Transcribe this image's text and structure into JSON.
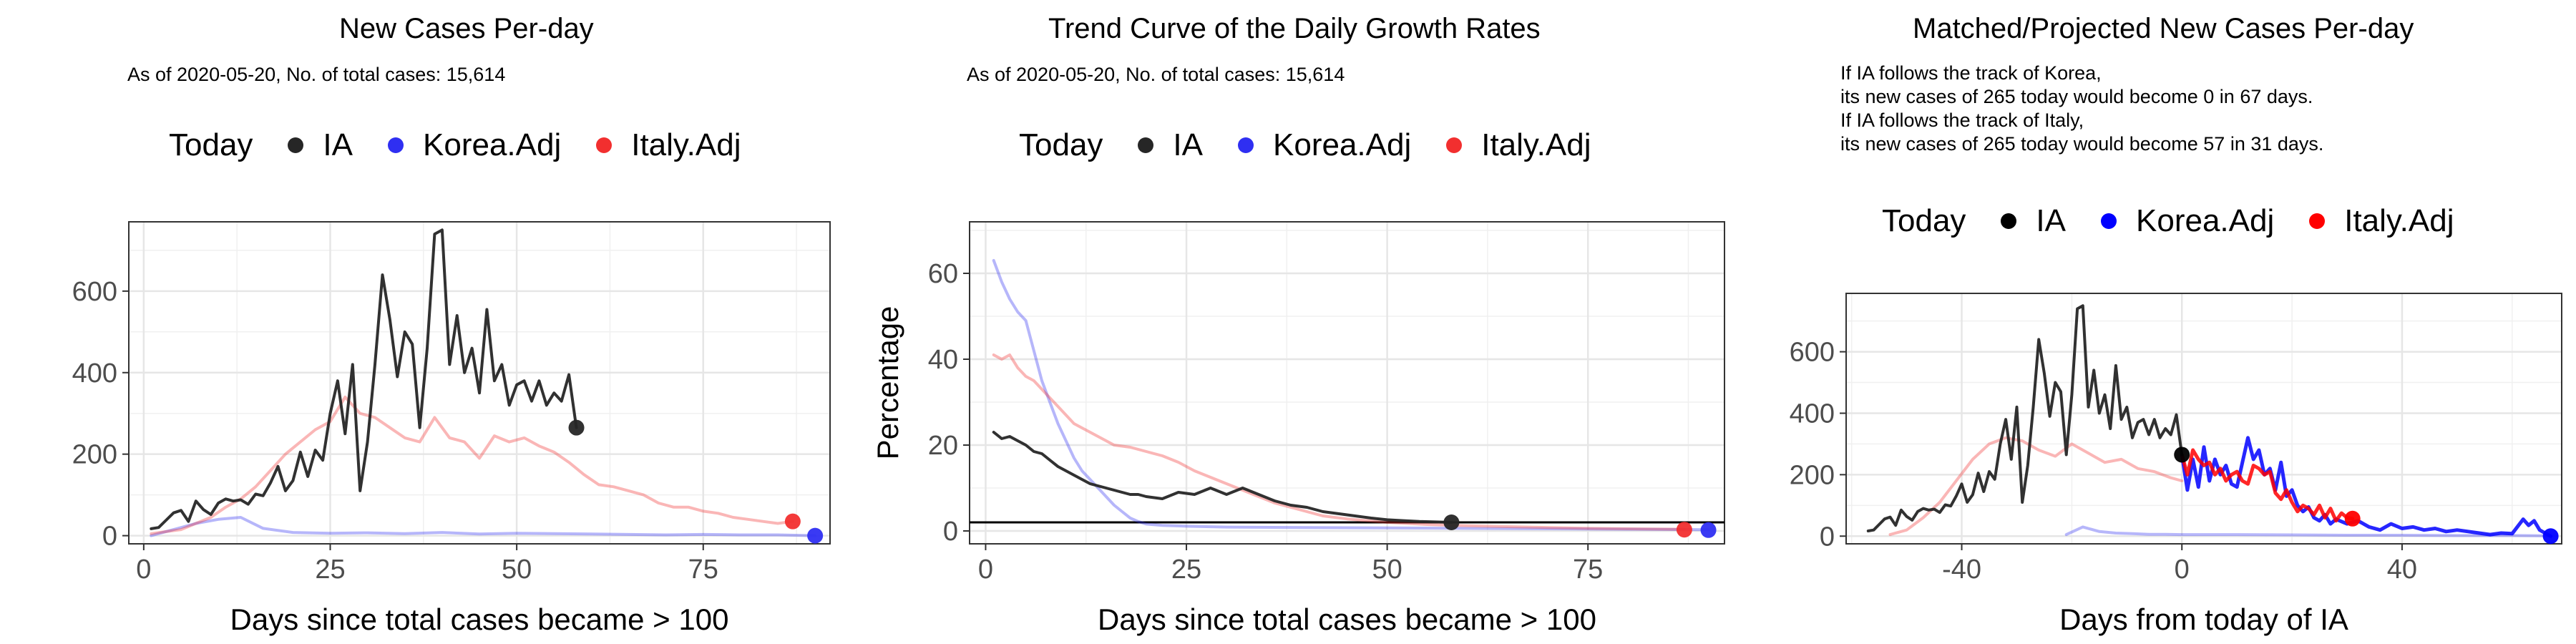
{
  "panels": [
    {
      "title": "New Cases Per-day",
      "subtitle_lines": [
        "As of 2020-05-20, No. of total cases: 15,614"
      ],
      "legend": {
        "title": "Today",
        "items": [
          {
            "label": "IA",
            "color": "#262626"
          },
          {
            "label": "Korea.Adj",
            "color": "#2F2FF2"
          },
          {
            "label": "Italy.Adj",
            "color": "#F22F2F"
          }
        ]
      }
    },
    {
      "title": "Trend Curve of the Daily Growth Rates",
      "subtitle_lines": [
        "As of 2020-05-20, No. of total cases: 15,614"
      ],
      "legend": {
        "title": "Today",
        "items": [
          {
            "label": "IA",
            "color": "#262626"
          },
          {
            "label": "Korea.Adj",
            "color": "#2F2FF2"
          },
          {
            "label": "Italy.Adj",
            "color": "#F22F2F"
          }
        ]
      }
    },
    {
      "title": "Matched/Projected New Cases Per-day",
      "subtitle_lines": [
        "If IA follows the track of Korea,",
        "its new cases of 265 today would become 0 in 67 days.",
        "If IA follows the track of Italy,",
        "its new cases of 265 today would become 57 in 31 days."
      ],
      "legend": {
        "title": "Today",
        "items": [
          {
            "label": "IA",
            "color": "#000000"
          },
          {
            "label": "Korea.Adj",
            "color": "#0000FF"
          },
          {
            "label": "Italy.Adj",
            "color": "#FF0000"
          }
        ]
      }
    }
  ],
  "chart_data": [
    {
      "type": "line",
      "title": "New Cases Per-day",
      "xlabel": "Days since total cases became > 100",
      "ylabel": "",
      "xlim": [
        -2,
        92
      ],
      "ylim": [
        -20,
        770
      ],
      "xticks": [
        0,
        25,
        50,
        75
      ],
      "yticks": [
        0,
        200,
        400,
        600
      ],
      "grid": true,
      "legend_position": "top",
      "series": [
        {
          "name": "IA",
          "color": "#262626",
          "opacity": 0.95,
          "width": 4,
          "x": [
            1,
            2,
            3,
            4,
            5,
            6,
            7,
            8,
            9,
            10,
            11,
            12,
            13,
            14,
            15,
            16,
            17,
            18,
            19,
            20,
            21,
            22,
            23,
            24,
            25,
            26,
            27,
            28,
            29,
            30,
            31,
            32,
            33,
            34,
            35,
            36,
            37,
            38,
            39,
            40,
            41,
            42,
            43,
            44,
            45,
            46,
            47,
            48,
            49,
            50,
            51,
            52,
            53,
            54,
            55,
            56,
            57,
            58
          ],
          "y": [
            17,
            20,
            38,
            56,
            62,
            35,
            85,
            64,
            52,
            80,
            90,
            85,
            88,
            77,
            102,
            98,
            130,
            170,
            110,
            135,
            205,
            145,
            210,
            185,
            300,
            380,
            250,
            420,
            110,
            230,
            420,
            640,
            530,
            390,
            500,
            470,
            265,
            460,
            740,
            750,
            420,
            540,
            400,
            460,
            350,
            555,
            380,
            420,
            320,
            370,
            380,
            330,
            380,
            320,
            350,
            330,
            395,
            265
          ]
        },
        {
          "name": "Korea.Adj",
          "color": "#2F2FF2",
          "opacity": 0.35,
          "width": 4,
          "x": [
            1,
            4,
            7,
            10,
            13,
            16,
            20,
            25,
            30,
            35,
            40,
            45,
            50,
            55,
            60,
            65,
            70,
            75,
            80,
            85,
            90
          ],
          "y": [
            0,
            15,
            30,
            40,
            45,
            18,
            8,
            6,
            7,
            5,
            8,
            4,
            6,
            5,
            4,
            3,
            2,
            3,
            2,
            2,
            0
          ]
        },
        {
          "name": "Italy.Adj",
          "color": "#F22F2F",
          "opacity": 0.35,
          "width": 4,
          "x": [
            1,
            3,
            5,
            7,
            9,
            11,
            13,
            15,
            17,
            19,
            21,
            23,
            25,
            27,
            29,
            31,
            33,
            35,
            37,
            39,
            41,
            43,
            45,
            47,
            49,
            51,
            53,
            55,
            57,
            59,
            61,
            63,
            65,
            67,
            69,
            71,
            73,
            75,
            77,
            79,
            81,
            83,
            85,
            87
          ],
          "y": [
            5,
            10,
            15,
            30,
            45,
            70,
            90,
            120,
            160,
            200,
            230,
            260,
            280,
            340,
            300,
            290,
            265,
            240,
            230,
            290,
            240,
            230,
            190,
            245,
            230,
            240,
            220,
            205,
            180,
            150,
            125,
            120,
            110,
            100,
            80,
            70,
            70,
            60,
            55,
            45,
            40,
            35,
            30,
            35
          ]
        }
      ],
      "today_points": [
        {
          "series": "IA",
          "x": 58,
          "y": 265,
          "color": "#262626"
        },
        {
          "series": "Korea.Adj",
          "x": 90,
          "y": 0,
          "color": "#2F2FF2"
        },
        {
          "series": "Italy.Adj",
          "x": 87,
          "y": 35,
          "color": "#F22F2F"
        }
      ]
    },
    {
      "type": "line",
      "title": "Trend Curve of the Daily Growth Rates",
      "xlabel": "Days since total cases became > 100",
      "ylabel": "Percentage",
      "xlim": [
        -2,
        92
      ],
      "ylim": [
        -3,
        72
      ],
      "xticks": [
        0,
        25,
        50,
        75
      ],
      "yticks": [
        0,
        20,
        40,
        60
      ],
      "grid": true,
      "legend_position": "top",
      "hline": 2,
      "series": [
        {
          "name": "IA",
          "color": "#262626",
          "opacity": 0.95,
          "width": 4,
          "x": [
            1,
            2,
            3,
            4,
            5,
            6,
            7,
            8,
            9,
            10,
            11,
            12,
            13,
            14,
            15,
            16,
            17,
            18,
            19,
            20,
            22,
            24,
            26,
            28,
            30,
            32,
            34,
            36,
            38,
            40,
            42,
            44,
            46,
            48,
            50,
            52,
            54,
            56,
            58
          ],
          "y": [
            23,
            21.5,
            22,
            21,
            20,
            18.5,
            18,
            16.5,
            15,
            14,
            13,
            12,
            11,
            10.5,
            10,
            9.5,
            9,
            8.5,
            8.5,
            8,
            7.5,
            9,
            8.5,
            10,
            8.5,
            10,
            8.5,
            7,
            6,
            5.5,
            4.5,
            4,
            3.5,
            3,
            2.6,
            2.4,
            2.2,
            2.1,
            2
          ]
        },
        {
          "name": "Korea.Adj",
          "color": "#2F2FF2",
          "opacity": 0.35,
          "width": 4,
          "x": [
            1,
            2,
            3,
            4,
            5,
            6,
            7,
            8,
            9,
            10,
            11,
            12,
            13,
            14,
            15,
            16,
            17,
            18,
            19,
            20,
            22,
            25,
            30,
            40,
            50,
            60,
            70,
            80,
            90
          ],
          "y": [
            63,
            58,
            54,
            51,
            49,
            42,
            35,
            30,
            25,
            21,
            17,
            14,
            12,
            10,
            8,
            6,
            4.5,
            3,
            2.2,
            1.6,
            1.3,
            1.1,
            0.9,
            0.8,
            0.7,
            0.6,
            0.5,
            0.4,
            0.3
          ]
        },
        {
          "name": "Italy.Adj",
          "color": "#F22F2F",
          "opacity": 0.35,
          "width": 4,
          "x": [
            1,
            2,
            3,
            4,
            5,
            6,
            7,
            8,
            9,
            10,
            11,
            12,
            13,
            14,
            15,
            16,
            18,
            20,
            22,
            24,
            26,
            28,
            30,
            32,
            34,
            36,
            38,
            40,
            42,
            45,
            50,
            55,
            60,
            65,
            70,
            75,
            80,
            87
          ],
          "y": [
            41,
            40,
            41,
            38,
            36,
            35,
            33,
            31,
            29,
            27,
            25,
            24,
            23,
            22,
            21,
            20,
            19.5,
            18.5,
            17.5,
            16,
            14,
            12.5,
            11,
            9.5,
            8,
            6.5,
            5.5,
            4.5,
            3.5,
            2.8,
            2,
            1.5,
            1.2,
            1,
            0.8,
            0.6,
            0.5,
            0.4
          ]
        }
      ],
      "today_points": [
        {
          "series": "IA",
          "x": 58,
          "y": 2,
          "color": "#262626"
        },
        {
          "series": "Korea.Adj",
          "x": 90,
          "y": 0.2,
          "color": "#2F2FF2"
        },
        {
          "series": "Italy.Adj",
          "x": 87,
          "y": 0.3,
          "color": "#F22F2F"
        }
      ]
    },
    {
      "type": "line",
      "title": "Matched/Projected New Cases Per-day",
      "xlabel": "Days from today of IA",
      "ylabel": "",
      "xlim": [
        -61,
        69
      ],
      "ylim": [
        -25,
        790
      ],
      "xticks": [
        -40,
        0,
        40
      ],
      "yticks": [
        0,
        200,
        400,
        600
      ],
      "grid": true,
      "legend_position": "top",
      "series": [
        {
          "name": "IA",
          "color": "#262626",
          "opacity": 0.95,
          "width": 4,
          "x": [
            -57,
            -56,
            -55,
            -54,
            -53,
            -52,
            -51,
            -50,
            -49,
            -48,
            -47,
            -46,
            -45,
            -44,
            -43,
            -42,
            -41,
            -40,
            -39,
            -38,
            -37,
            -36,
            -35,
            -34,
            -33,
            -32,
            -31,
            -30,
            -29,
            -28,
            -27,
            -26,
            -25,
            -24,
            -23,
            -22,
            -21,
            -20,
            -19,
            -18,
            -17,
            -16,
            -15,
            -14,
            -13,
            -12,
            -11,
            -10,
            -9,
            -8,
            -7,
            -6,
            -5,
            -4,
            -3,
            -2,
            -1,
            0
          ],
          "y": [
            17,
            20,
            38,
            56,
            62,
            35,
            85,
            64,
            52,
            80,
            90,
            85,
            88,
            77,
            102,
            98,
            130,
            170,
            110,
            135,
            205,
            145,
            210,
            185,
            300,
            380,
            250,
            420,
            110,
            230,
            420,
            640,
            530,
            390,
            500,
            470,
            265,
            460,
            740,
            750,
            420,
            540,
            400,
            460,
            350,
            555,
            380,
            420,
            320,
            370,
            380,
            330,
            380,
            320,
            350,
            330,
            395,
            265
          ]
        },
        {
          "name": "Italy.Adj (matched)",
          "color": "#F22F2F",
          "opacity": 0.35,
          "width": 4,
          "x": [
            -53,
            -50,
            -47,
            -44,
            -41,
            -38,
            -35,
            -32,
            -29,
            -26,
            -23,
            -20,
            -17,
            -14,
            -11,
            -8,
            -5,
            -2,
            0
          ],
          "y": [
            5,
            20,
            60,
            110,
            180,
            250,
            300,
            320,
            310,
            280,
            260,
            300,
            270,
            240,
            250,
            220,
            210,
            190,
            180
          ]
        },
        {
          "name": "Korea.Adj (matched)",
          "color": "#2F2FF2",
          "opacity": 0.35,
          "width": 4,
          "x": [
            -21,
            -18,
            -15,
            -12,
            -9,
            -6,
            -3,
            0,
            10,
            20,
            30,
            40,
            50,
            60,
            67
          ],
          "y": [
            5,
            30,
            15,
            10,
            8,
            6,
            6,
            5,
            5,
            4,
            3,
            3,
            2,
            2,
            1
          ]
        },
        {
          "name": "Korea.Adj",
          "color": "#0000FF",
          "opacity": 0.85,
          "width": 5,
          "x": [
            0,
            1,
            2,
            3,
            4,
            5,
            6,
            7,
            8,
            9,
            10,
            11,
            12,
            13,
            14,
            15,
            16,
            17,
            18,
            19,
            20,
            21,
            22,
            23,
            24,
            25,
            26,
            27,
            28,
            30,
            32,
            34,
            36,
            38,
            40,
            42,
            44,
            46,
            48,
            50,
            52,
            54,
            56,
            58,
            60,
            62,
            63,
            64,
            65,
            66,
            67
          ],
          "y": [
            265,
            150,
            250,
            160,
            290,
            180,
            250,
            200,
            230,
            170,
            160,
            240,
            320,
            250,
            280,
            200,
            220,
            150,
            240,
            130,
            150,
            100,
            80,
            95,
            60,
            50,
            70,
            40,
            55,
            40,
            50,
            30,
            20,
            40,
            25,
            30,
            20,
            25,
            15,
            20,
            15,
            10,
            5,
            10,
            8,
            55,
            35,
            50,
            20,
            10,
            0
          ]
        },
        {
          "name": "Italy.Adj",
          "color": "#FF0000",
          "opacity": 0.85,
          "width": 5,
          "x": [
            0,
            1,
            2,
            3,
            4,
            5,
            6,
            7,
            8,
            9,
            10,
            11,
            12,
            13,
            14,
            15,
            16,
            17,
            18,
            19,
            20,
            21,
            22,
            23,
            24,
            25,
            26,
            27,
            28,
            29,
            30,
            31
          ],
          "y": [
            265,
            200,
            280,
            250,
            230,
            240,
            200,
            220,
            180,
            200,
            210,
            180,
            170,
            230,
            220,
            200,
            210,
            140,
            120,
            150,
            110,
            80,
            100,
            90,
            70,
            100,
            60,
            90,
            50,
            75,
            60,
            57
          ]
        }
      ],
      "today_points": [
        {
          "series": "IA",
          "x": 0,
          "y": 265,
          "color": "#000000"
        },
        {
          "series": "Korea.Adj",
          "x": 67,
          "y": 0,
          "color": "#0000FF"
        },
        {
          "series": "Italy.Adj",
          "x": 31,
          "y": 57,
          "color": "#FF0000"
        }
      ]
    }
  ]
}
